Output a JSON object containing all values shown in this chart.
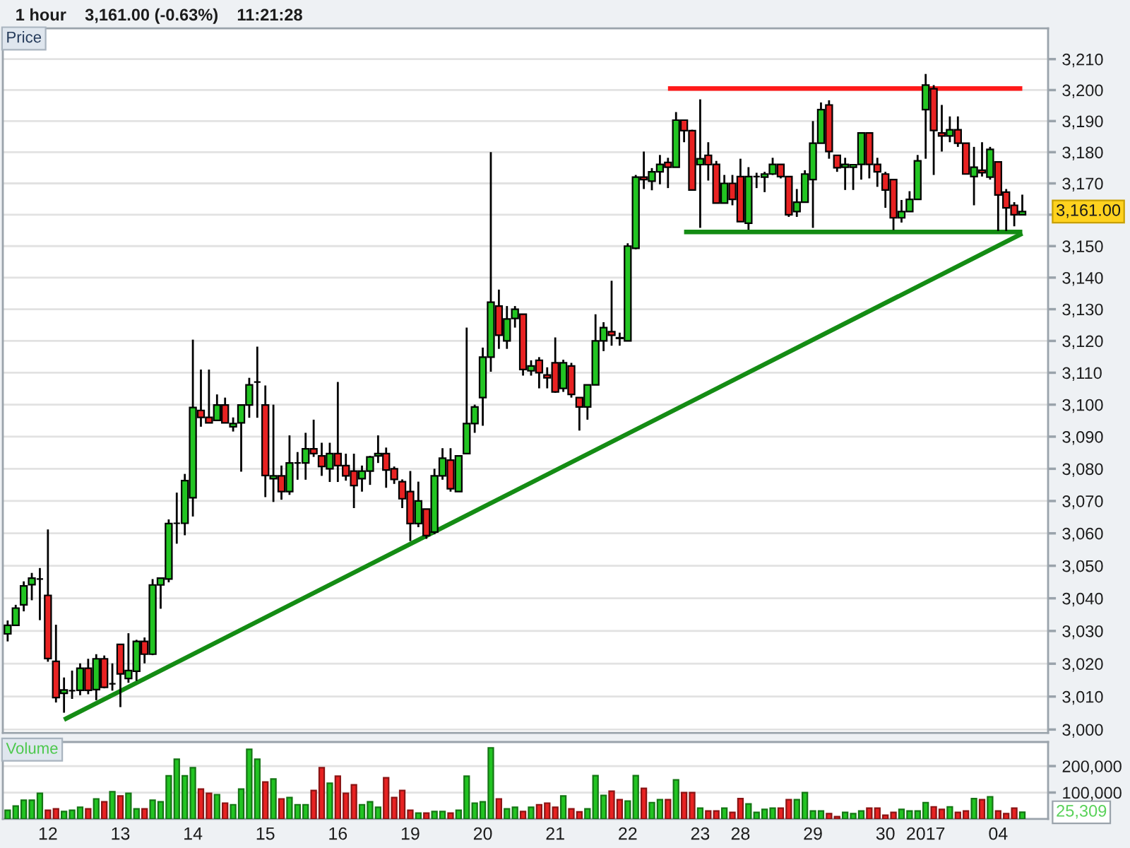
{
  "chart_data": [
    {
      "type": "candlestick",
      "title": "1 hour    3,161.00 (-0.63%)    11:21:28",
      "ylabel": "Price",
      "categories": [
        null,
        null,
        null,
        null,
        null,
        "12",
        null,
        null,
        null,
        null,
        null,
        null,
        null,
        null,
        "13",
        null,
        null,
        null,
        null,
        null,
        null,
        null,
        null,
        "14",
        null,
        null,
        null,
        null,
        null,
        null,
        null,
        null,
        "15",
        null,
        null,
        null,
        null,
        null,
        null,
        null,
        null,
        "16",
        null,
        null,
        null,
        null,
        null,
        null,
        null,
        null,
        "19",
        null,
        null,
        null,
        null,
        null,
        null,
        null,
        null,
        "20",
        null,
        null,
        null,
        null,
        null,
        null,
        null,
        null,
        "21",
        null,
        null,
        null,
        null,
        null,
        null,
        null,
        null,
        "22",
        null,
        null,
        null,
        null,
        null,
        null,
        null,
        null,
        "23",
        null,
        null,
        null,
        null,
        "28",
        null,
        null,
        null,
        null,
        null,
        null,
        null,
        null,
        "29",
        null,
        null,
        null,
        null,
        null,
        null,
        null,
        null,
        "30",
        null,
        null,
        null,
        null,
        "2017",
        null,
        null,
        null,
        null,
        null,
        null,
        null,
        null,
        "04",
        null,
        null,
        null
      ],
      "ohlc": [
        [
          3029.1,
          3033.2,
          3026.8,
          3031.7
        ],
        [
          3031.7,
          3038.0,
          3031.5,
          3037.0
        ],
        [
          3038.0,
          3045.2,
          3036.0,
          3043.8
        ],
        [
          3044.2,
          3047.8,
          3039.4,
          3046.2
        ],
        [
          3045.9,
          3049.3,
          3033.3,
          3045.9
        ],
        [
          3040.9,
          3061.2,
          3020.6,
          3021.6
        ],
        [
          3020.7,
          3031.9,
          3008.2,
          3009.7
        ],
        [
          3011.0,
          3015.8,
          3005.1,
          3012.0
        ],
        [
          3011.8,
          3017.9,
          3009.3,
          3011.8
        ],
        [
          3011.9,
          3020.1,
          3010.4,
          3018.6
        ],
        [
          3018.6,
          3021.5,
          3010.7,
          3011.9
        ],
        [
          3012.1,
          3022.9,
          3008.9,
          3021.5
        ],
        [
          3021.5,
          3022.5,
          3012.5,
          3012.8
        ],
        [
          3013.9,
          3020.1,
          3011.8,
          3013.9
        ],
        [
          3025.9,
          3025.9,
          3006.8,
          3016.9
        ],
        [
          3015.5,
          3029.3,
          3014.2,
          3017.9
        ],
        [
          3017.7,
          3027.3,
          3014.8,
          3026.8
        ],
        [
          3026.8,
          3028.0,
          3020.1,
          3022.9
        ],
        [
          3022.9,
          3045.9,
          3022.6,
          3044.1
        ],
        [
          3044.1,
          3046.4,
          3036.8,
          3046.2
        ],
        [
          3045.9,
          3064.3,
          3044.9,
          3063.0
        ],
        [
          3063.1,
          3072.6,
          3056.8,
          3063.1
        ],
        [
          3063.1,
          3078.4,
          3059.4,
          3076.3
        ],
        [
          3071.0,
          3120.4,
          3065.2,
          3099.1
        ],
        [
          3098.2,
          3111.0,
          3093.1,
          3096.0
        ],
        [
          3096.0,
          3111.0,
          3094.3,
          3094.3
        ],
        [
          3095.1,
          3103.2,
          3095.1,
          3099.9
        ],
        [
          3099.9,
          3102.2,
          3094.3,
          3094.3
        ],
        [
          3093.1,
          3096.0,
          3091.6,
          3094.1
        ],
        [
          3094.3,
          3099.9,
          3079.1,
          3099.9
        ],
        [
          3099.9,
          3108.4,
          3095.9,
          3106.2
        ],
        [
          3107.1,
          3118.2,
          3095.9,
          3107.1
        ],
        [
          3099.9,
          3106.0,
          3071.2,
          3077.9
        ],
        [
          3076.9,
          3100.0,
          3069.7,
          3077.8
        ],
        [
          3077.8,
          3081.0,
          3070.4,
          3072.9
        ],
        [
          3072.9,
          3090.4,
          3071.9,
          3081.8
        ],
        [
          3081.8,
          3085.2,
          3076.6,
          3081.8
        ],
        [
          3081.8,
          3091.2,
          3076.6,
          3086.2
        ],
        [
          3086.2,
          3095.3,
          3083.7,
          3084.7
        ],
        [
          3084.0,
          3088.1,
          3077.8,
          3080.7
        ],
        [
          3080.0,
          3088.1,
          3075.9,
          3084.7
        ],
        [
          3084.7,
          3107.1,
          3075.9,
          3081.0
        ],
        [
          3081.0,
          3084.7,
          3076.3,
          3077.8
        ],
        [
          3079.3,
          3084.7,
          3067.8,
          3074.8
        ],
        [
          3076.9,
          3081.0,
          3072.9,
          3079.3
        ],
        [
          3079.3,
          3084.0,
          3075.0,
          3083.7
        ],
        [
          3084.0,
          3090.4,
          3081.8,
          3084.7
        ],
        [
          3084.7,
          3086.6,
          3074.1,
          3079.6
        ],
        [
          3080.0,
          3080.7,
          3075.3,
          3076.7
        ],
        [
          3076.0,
          3076.7,
          3067.8,
          3070.7
        ],
        [
          3072.9,
          3079.3,
          3057.6,
          3063.0
        ],
        [
          3063.0,
          3076.0,
          3061.9,
          3070.0
        ],
        [
          3067.5,
          3067.5,
          3058.3,
          3059.3
        ],
        [
          3060.4,
          3080.0,
          3059.7,
          3077.8
        ],
        [
          3077.8,
          3086.4,
          3076.6,
          3083.3
        ],
        [
          3082.7,
          3086.4,
          3072.9,
          3073.8
        ],
        [
          3072.9,
          3084.0,
          3072.9,
          3084.0
        ],
        [
          3084.7,
          3124.2,
          3084.7,
          3094.1
        ],
        [
          3094.1,
          3100.0,
          3091.2,
          3099.3
        ],
        [
          3102.2,
          3117.9,
          3093.4,
          3114.9
        ],
        [
          3114.9,
          3180.0,
          3110.3,
          3132.2
        ],
        [
          3131.0,
          3136.2,
          3117.5,
          3121.8
        ],
        [
          3120.0,
          3131.0,
          3117.5,
          3126.9
        ],
        [
          3127.1,
          3131.0,
          3124.2,
          3130.0
        ],
        [
          3128.4,
          3128.4,
          3109.1,
          3111.0
        ],
        [
          3110.6,
          3113.9,
          3109.1,
          3112.1
        ],
        [
          3113.9,
          3114.9,
          3105.1,
          3110.0
        ],
        [
          3109.3,
          3111.7,
          3105.1,
          3108.4
        ],
        [
          3113.1,
          3121.1,
          3103.7,
          3104.0
        ],
        [
          3105.1,
          3114.1,
          3104.0,
          3113.1
        ],
        [
          3112.1,
          3113.1,
          3102.2,
          3103.2
        ],
        [
          3102.2,
          3102.2,
          3091.9,
          3099.3
        ],
        [
          3099.3,
          3106.2,
          3095.3,
          3106.2
        ],
        [
          3106.2,
          3128.4,
          3106.2,
          3120.0
        ],
        [
          3120.0,
          3125.9,
          3116.8,
          3124.2
        ],
        [
          3122.9,
          3139.0,
          3118.5,
          3121.8
        ],
        [
          3121.0,
          3122.6,
          3118.5,
          3120.8
        ],
        [
          3120.0,
          3150.9,
          3120.0,
          3150.0
        ],
        [
          3149.3,
          3172.7,
          3149.0,
          3172.0
        ],
        [
          3172.0,
          3180.2,
          3168.2,
          3171.2
        ],
        [
          3170.7,
          3174.9,
          3167.8,
          3173.7
        ],
        [
          3173.7,
          3179.1,
          3169.7,
          3176.1
        ],
        [
          3176.7,
          3178.2,
          3168.5,
          3175.2
        ],
        [
          3175.2,
          3192.9,
          3175.2,
          3190.3
        ],
        [
          3190.3,
          3190.3,
          3183.2,
          3186.9
        ],
        [
          3186.9,
          3187.2,
          3167.9,
          3167.9
        ],
        [
          3176.0,
          3197.0,
          3155.8,
          3177.9
        ],
        [
          3179.0,
          3183.2,
          3170.9,
          3176.0
        ],
        [
          3176.1,
          3177.2,
          3163.7,
          3163.7
        ],
        [
          3163.7,
          3172.7,
          3163.7,
          3170.0
        ],
        [
          3170.0,
          3172.7,
          3163.0,
          3164.9
        ],
        [
          3172.2,
          3177.9,
          3157.8,
          3157.8
        ],
        [
          3157.3,
          3175.2,
          3155.2,
          3172.2
        ],
        [
          3172.2,
          3173.4,
          3168.5,
          3172.2
        ],
        [
          3172.0,
          3173.7,
          3167.2,
          3173.0
        ],
        [
          3173.0,
          3178.2,
          3172.7,
          3176.1
        ],
        [
          3176.1,
          3176.1,
          3171.6,
          3172.2
        ],
        [
          3172.2,
          3172.2,
          3159.3,
          3160.0
        ],
        [
          3161.0,
          3168.2,
          3159.3,
          3164.0
        ],
        [
          3164.0,
          3174.2,
          3164.0,
          3173.0
        ],
        [
          3171.2,
          3190.0,
          3155.8,
          3182.9
        ],
        [
          3182.9,
          3196.0,
          3182.9,
          3193.7
        ],
        [
          3195.2,
          3196.7,
          3177.9,
          3180.2
        ],
        [
          3179.0,
          3179.0,
          3173.7,
          3175.0
        ],
        [
          3175.2,
          3178.2,
          3167.9,
          3176.1
        ],
        [
          3175.2,
          3176.1,
          3167.9,
          3176.0
        ],
        [
          3176.1,
          3186.2,
          3171.2,
          3186.2
        ],
        [
          3186.2,
          3186.2,
          3171.6,
          3176.1
        ],
        [
          3176.1,
          3178.2,
          3168.9,
          3173.7
        ],
        [
          3173.0,
          3173.7,
          3162.2,
          3167.9
        ],
        [
          3171.2,
          3171.2,
          3155.1,
          3159.0
        ],
        [
          3159.0,
          3164.7,
          3157.5,
          3161.0
        ],
        [
          3161.0,
          3167.5,
          3161.0,
          3164.9
        ],
        [
          3164.9,
          3179.1,
          3164.9,
          3177.2
        ],
        [
          3193.7,
          3205.2,
          3177.9,
          3201.6
        ],
        [
          3200.4,
          3201.6,
          3172.7,
          3187.0
        ],
        [
          3186.2,
          3195.2,
          3180.2,
          3185.2
        ],
        [
          3185.2,
          3191.5,
          3183.2,
          3187.2
        ],
        [
          3187.2,
          3191.5,
          3181.7,
          3182.9
        ],
        [
          3182.9,
          3182.9,
          3173.0,
          3173.0
        ],
        [
          3172.2,
          3181.7,
          3163.0,
          3175.2
        ],
        [
          3174.2,
          3183.2,
          3172.2,
          3173.4
        ],
        [
          3172.0,
          3181.7,
          3171.2,
          3180.9
        ],
        [
          3176.9,
          3176.9,
          3154.8,
          3166.3
        ],
        [
          3167.2,
          3168.2,
          3154.8,
          3162.2
        ],
        [
          3163.0,
          3164.0,
          3156.3,
          3160.0
        ],
        [
          3160.0,
          3166.4,
          3160.0,
          3161.0
        ]
      ],
      "colors": [
        "#22c422",
        "#22c422",
        "#22c422",
        "#22c422",
        "#000000",
        "#e82222",
        "#e82222",
        "#22c422",
        "#000000",
        "#22c422",
        "#e82222",
        "#22c422",
        "#e82222",
        "#000000",
        "#e82222",
        "#22c422",
        "#22c422",
        "#e82222",
        "#22c422",
        "#22c422",
        "#22c422",
        "#000000",
        "#22c422",
        "#22c422",
        "#e82222",
        "#e82222",
        "#22c422",
        "#e82222",
        "#22c422",
        "#22c422",
        "#22c422",
        "#000000",
        "#e82222",
        "#22c422",
        "#e82222",
        "#22c422",
        "#000000",
        "#22c422",
        "#e82222",
        "#e82222",
        "#22c422",
        "#e82222",
        "#e82222",
        "#e82222",
        "#22c422",
        "#22c422",
        "#22c422",
        "#e82222",
        "#e82222",
        "#e82222",
        "#e82222",
        "#22c422",
        "#e82222",
        "#22c422",
        "#22c422",
        "#e82222",
        "#22c422",
        "#22c422",
        "#22c422",
        "#22c422",
        "#22c422",
        "#e82222",
        "#22c422",
        "#22c422",
        "#e82222",
        "#22c422",
        "#e82222",
        "#e82222",
        "#e82222",
        "#22c422",
        "#e82222",
        "#e82222",
        "#22c422",
        "#22c422",
        "#22c422",
        "#e82222",
        "#e82222",
        "#22c422",
        "#22c422",
        "#e82222",
        "#22c422",
        "#22c422",
        "#e82222",
        "#22c422",
        "#e82222",
        "#e82222",
        "#22c422",
        "#e82222",
        "#e82222",
        "#22c422",
        "#e82222",
        "#e82222",
        "#22c422",
        "#000000",
        "#22c422",
        "#22c422",
        "#e82222",
        "#e82222",
        "#22c422",
        "#22c422",
        "#22c422",
        "#22c422",
        "#e82222",
        "#e82222",
        "#22c422",
        "#22c422",
        "#22c422",
        "#e82222",
        "#e82222",
        "#e82222",
        "#e82222",
        "#22c422",
        "#22c422",
        "#22c422",
        "#22c422",
        "#e82222",
        "#e82222",
        "#22c422",
        "#e82222",
        "#e82222",
        "#22c422",
        "#e82222",
        "#22c422",
        "#e82222",
        "#e82222",
        "#e82222",
        "#22c422"
      ],
      "series": [
        {
          "type": "line",
          "color": "#ff1a1a",
          "values": [
            null,
            null,
            null,
            null,
            null,
            null,
            null,
            null,
            null,
            null,
            null,
            null,
            null,
            null,
            null,
            null,
            null,
            null,
            null,
            null,
            null,
            null,
            null,
            null,
            null,
            null,
            null,
            null,
            null,
            null,
            null,
            null,
            null,
            null,
            null,
            null,
            null,
            null,
            null,
            null,
            null,
            null,
            null,
            null,
            null,
            null,
            null,
            null,
            null,
            null,
            null,
            null,
            null,
            null,
            null,
            null,
            null,
            null,
            null,
            null,
            null,
            null,
            null,
            null,
            null,
            null,
            null,
            null,
            null,
            null,
            null,
            null,
            null,
            null,
            null,
            null,
            null,
            null,
            null,
            null,
            null,
            null,
            3200.5,
            null,
            null,
            null,
            null,
            null,
            null,
            null,
            null,
            null,
            null,
            null,
            null,
            null,
            null,
            null,
            null,
            null,
            null,
            null,
            null,
            null,
            null,
            null,
            null,
            null,
            null,
            null,
            null,
            null,
            null,
            null,
            null,
            null,
            null,
            null,
            null,
            null,
            null,
            null,
            null,
            null,
            null,
            null,
            3200.5
          ]
        },
        {
          "type": "line",
          "color": "#148c14",
          "values": [
            null,
            null,
            null,
            null,
            null,
            null,
            null,
            null,
            null,
            null,
            null,
            null,
            null,
            null,
            null,
            null,
            null,
            null,
            null,
            null,
            null,
            null,
            null,
            null,
            null,
            null,
            null,
            null,
            null,
            null,
            null,
            null,
            null,
            null,
            null,
            null,
            null,
            null,
            null,
            null,
            null,
            null,
            null,
            null,
            null,
            null,
            null,
            null,
            null,
            null,
            null,
            null,
            null,
            null,
            null,
            null,
            null,
            null,
            null,
            null,
            null,
            null,
            null,
            null,
            null,
            null,
            null,
            null,
            null,
            null,
            null,
            null,
            null,
            null,
            null,
            null,
            null,
            null,
            null,
            null,
            null,
            null,
            null,
            null,
            3154.5,
            null,
            null,
            null,
            null,
            null,
            null,
            null,
            null,
            null,
            null,
            null,
            null,
            null,
            null,
            null,
            null,
            null,
            null,
            null,
            null,
            null,
            null,
            null,
            null,
            null,
            null,
            null,
            null,
            null,
            null,
            null,
            null,
            null,
            null,
            null,
            null,
            null,
            null,
            null,
            null,
            null,
            3154.5
          ]
        },
        {
          "type": "line",
          "color": "#148c14",
          "values": [
            null,
            null,
            null,
            null,
            null,
            null,
            null,
            3003,
            null,
            null,
            null,
            null,
            null,
            null,
            null,
            null,
            null,
            null,
            null,
            null,
            null,
            null,
            null,
            null,
            null,
            null,
            null,
            null,
            null,
            null,
            null,
            null,
            null,
            null,
            null,
            null,
            null,
            null,
            null,
            null,
            null,
            null,
            null,
            null,
            null,
            null,
            null,
            null,
            null,
            null,
            null,
            null,
            null,
            null,
            null,
            null,
            null,
            null,
            null,
            null,
            null,
            null,
            null,
            null,
            null,
            null,
            null,
            null,
            null,
            null,
            null,
            null,
            null,
            null,
            null,
            null,
            null,
            null,
            null,
            null,
            null,
            null,
            null,
            null,
            null,
            null,
            null,
            null,
            null,
            null,
            null,
            null,
            null,
            null,
            null,
            null,
            null,
            null,
            null,
            null,
            null,
            null,
            null,
            null,
            null,
            null,
            null,
            null,
            null,
            null,
            null,
            null,
            null,
            null,
            null,
            null,
            null,
            null,
            null,
            null,
            null,
            null,
            null,
            null,
            null,
            null,
            3154
          ]
        }
      ],
      "log": true,
      "ylim": [
        2999,
        3220
      ],
      "yticks": [
        {
          "value": 3000,
          "label": "3,000"
        },
        {
          "value": 3010,
          "label": "3,010"
        },
        {
          "value": 3020,
          "label": "3,020"
        },
        {
          "value": 3030,
          "label": "3,030"
        },
        {
          "value": 3040,
          "label": "3,040"
        },
        {
          "value": 3050,
          "label": "3,050"
        },
        {
          "value": 3060,
          "label": "3,060"
        },
        {
          "value": 3070,
          "label": "3,070"
        },
        {
          "value": 3080,
          "label": "3,080"
        },
        {
          "value": 3090,
          "label": "3,090"
        },
        {
          "value": 3100,
          "label": "3,100"
        },
        {
          "value": 3110,
          "label": "3,110"
        },
        {
          "value": 3120,
          "label": "3,120"
        },
        {
          "value": 3130,
          "label": "3,130"
        },
        {
          "value": 3140,
          "label": "3,140"
        },
        {
          "value": 3150,
          "label": "3,150"
        },
        {
          "value": 3160,
          "label": null
        },
        {
          "value": 3170,
          "label": "3,170"
        },
        {
          "value": 3180,
          "label": "3,180"
        },
        {
          "value": 3190,
          "label": "3,190"
        },
        {
          "value": 3200,
          "label": "3,200"
        },
        {
          "value": 3210,
          "label": "3,210"
        }
      ],
      "grid": "y",
      "tick_labels": "y",
      "annotations": [
        "3,161.00"
      ]
    },
    {
      "type": "bar",
      "ylabel": "Volume",
      "categories": [
        null,
        null,
        null,
        null,
        null,
        "12",
        null,
        null,
        null,
        null,
        null,
        null,
        null,
        null,
        "13",
        null,
        null,
        null,
        null,
        null,
        null,
        null,
        null,
        "14",
        null,
        null,
        null,
        null,
        null,
        null,
        null,
        null,
        "15",
        null,
        null,
        null,
        null,
        null,
        null,
        null,
        null,
        "16",
        null,
        null,
        null,
        null,
        null,
        null,
        null,
        null,
        "19",
        null,
        null,
        null,
        null,
        null,
        null,
        null,
        null,
        "20",
        null,
        null,
        null,
        null,
        null,
        null,
        null,
        null,
        "21",
        null,
        null,
        null,
        null,
        null,
        null,
        null,
        null,
        "22",
        null,
        null,
        null,
        null,
        null,
        null,
        null,
        null,
        "23",
        null,
        null,
        null,
        null,
        "28",
        null,
        null,
        null,
        null,
        null,
        null,
        null,
        null,
        "29",
        null,
        null,
        null,
        null,
        null,
        null,
        null,
        null,
        "30",
        null,
        null,
        null,
        null,
        "2017",
        null,
        null,
        null,
        null,
        null,
        null,
        null,
        null,
        "04",
        null,
        null,
        null
      ],
      "values": [
        33000,
        49000,
        71000,
        71000,
        97000,
        33000,
        38000,
        28000,
        33000,
        44000,
        38000,
        76000,
        65000,
        103000,
        87000,
        97000,
        38000,
        38000,
        71000,
        65000,
        163000,
        226000,
        163000,
        194000,
        113000,
        97000,
        92000,
        60000,
        54000,
        113000,
        263000,
        226000,
        140000,
        151000,
        76000,
        81000,
        54000,
        54000,
        108000,
        194000,
        135000,
        162000,
        97000,
        129000,
        54000,
        65000,
        44000,
        156000,
        81000,
        108000,
        33000,
        22000,
        22000,
        28000,
        28000,
        22000,
        33000,
        162000,
        60000,
        65000,
        269000,
        76000,
        38000,
        44000,
        28000,
        44000,
        54000,
        60000,
        44000,
        87000,
        38000,
        27000,
        38000,
        164000,
        89000,
        105000,
        73000,
        68000,
        164000,
        116000,
        62000,
        73000,
        73000,
        148000,
        100000,
        100000,
        41000,
        30000,
        30000,
        41000,
        25000,
        77000,
        57000,
        25000,
        36000,
        41000,
        41000,
        73000,
        73000,
        100000,
        30000,
        30000,
        20000,
        9000,
        25000,
        20000,
        30000,
        41000,
        41000,
        14000,
        25000,
        36000,
        30000,
        30000,
        62000,
        46000,
        36000,
        46000,
        25000,
        30000,
        77000,
        73000,
        84000,
        30000,
        20000,
        41000,
        25309
      ],
      "colors": [
        "#22c422",
        "#22c422",
        "#22c422",
        "#22c422",
        "#22c422",
        "#e82222",
        "#e82222",
        "#22c422",
        "#22c422",
        "#22c422",
        "#e82222",
        "#22c422",
        "#e82222",
        "#22c422",
        "#e82222",
        "#22c422",
        "#22c422",
        "#e82222",
        "#22c422",
        "#22c422",
        "#22c422",
        "#22c422",
        "#22c422",
        "#22c422",
        "#e82222",
        "#e82222",
        "#22c422",
        "#e82222",
        "#22c422",
        "#22c422",
        "#22c422",
        "#22c422",
        "#e82222",
        "#22c422",
        "#e82222",
        "#22c422",
        "#22c422",
        "#22c422",
        "#e82222",
        "#e82222",
        "#22c422",
        "#e82222",
        "#e82222",
        "#e82222",
        "#22c422",
        "#22c422",
        "#22c422",
        "#e82222",
        "#e82222",
        "#e82222",
        "#e82222",
        "#22c422",
        "#e82222",
        "#22c422",
        "#22c422",
        "#e82222",
        "#22c422",
        "#22c422",
        "#22c422",
        "#22c422",
        "#22c422",
        "#e82222",
        "#22c422",
        "#22c422",
        "#e82222",
        "#22c422",
        "#e82222",
        "#e82222",
        "#e82222",
        "#22c422",
        "#e82222",
        "#e82222",
        "#22c422",
        "#22c422",
        "#22c422",
        "#e82222",
        "#e82222",
        "#22c422",
        "#22c422",
        "#e82222",
        "#22c422",
        "#22c422",
        "#e82222",
        "#22c422",
        "#e82222",
        "#e82222",
        "#22c422",
        "#e82222",
        "#e82222",
        "#22c422",
        "#e82222",
        "#e82222",
        "#22c422",
        "#22c422",
        "#22c422",
        "#22c422",
        "#e82222",
        "#e82222",
        "#22c422",
        "#22c422",
        "#22c422",
        "#22c422",
        "#e82222",
        "#e82222",
        "#22c422",
        "#22c422",
        "#22c422",
        "#e82222",
        "#e82222",
        "#e82222",
        "#e82222",
        "#22c422",
        "#22c422",
        "#22c422",
        "#22c422",
        "#e82222",
        "#e82222",
        "#22c422",
        "#e82222",
        "#e82222",
        "#22c422",
        "#e82222",
        "#22c422",
        "#e82222",
        "#e82222",
        "#e82222",
        "#22c422"
      ],
      "ylim": [
        0,
        291000
      ],
      "yticks": [
        {
          "value": 100000,
          "label": "100,000"
        },
        {
          "value": 200000,
          "label": "200,000"
        }
      ],
      "grid": "y",
      "annotations": [
        "25,309"
      ]
    }
  ]
}
